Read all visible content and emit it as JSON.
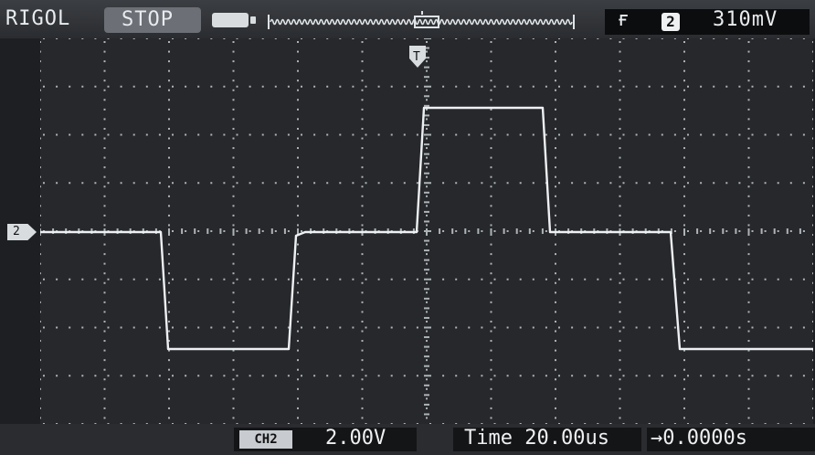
{
  "header": {
    "brand": "RIGOL",
    "run_state": "STOP",
    "trigger_channel": "2",
    "trigger_level": "310mV"
  },
  "waveform": {
    "channel_marker": "2"
  },
  "footer": {
    "channel_badge": "CH2",
    "volts_per_div": "2.00V",
    "timebase": "Time 20.00us",
    "trigger_offset": "→0.0000s"
  },
  "colors": {
    "trace": "#eef1f3",
    "grid_dots": "#aeb3b8",
    "screen_bg": "#26282b"
  }
}
